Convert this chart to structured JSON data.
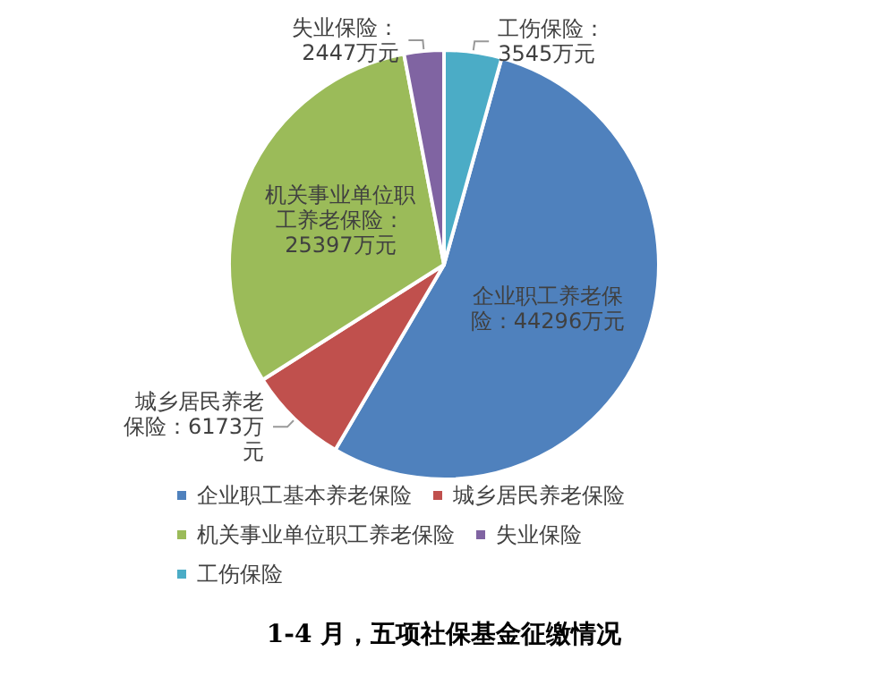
{
  "chart_data": {
    "type": "pie",
    "title": "1-4 月，五项社保基金征缴情况",
    "categories": [
      "企业职工基本养老保险",
      "城乡居民养老保险",
      "机关事业单位职工养老保险",
      "失业保险",
      "工伤保险"
    ],
    "values": [
      44296,
      6173,
      25397,
      2447,
      3545
    ],
    "colors": [
      "#4f81bd",
      "#c0504d",
      "#9bbb59",
      "#8064a2",
      "#4bacc6"
    ],
    "value_labels": [
      "企业职工养老保险：44296万元",
      "城乡居民养老保险：6173万元",
      "机关事业单位职工养老保险：25397万元",
      "失业保险：2447万元",
      "工伤保险：3545万元"
    ],
    "legend": "bottom"
  }
}
